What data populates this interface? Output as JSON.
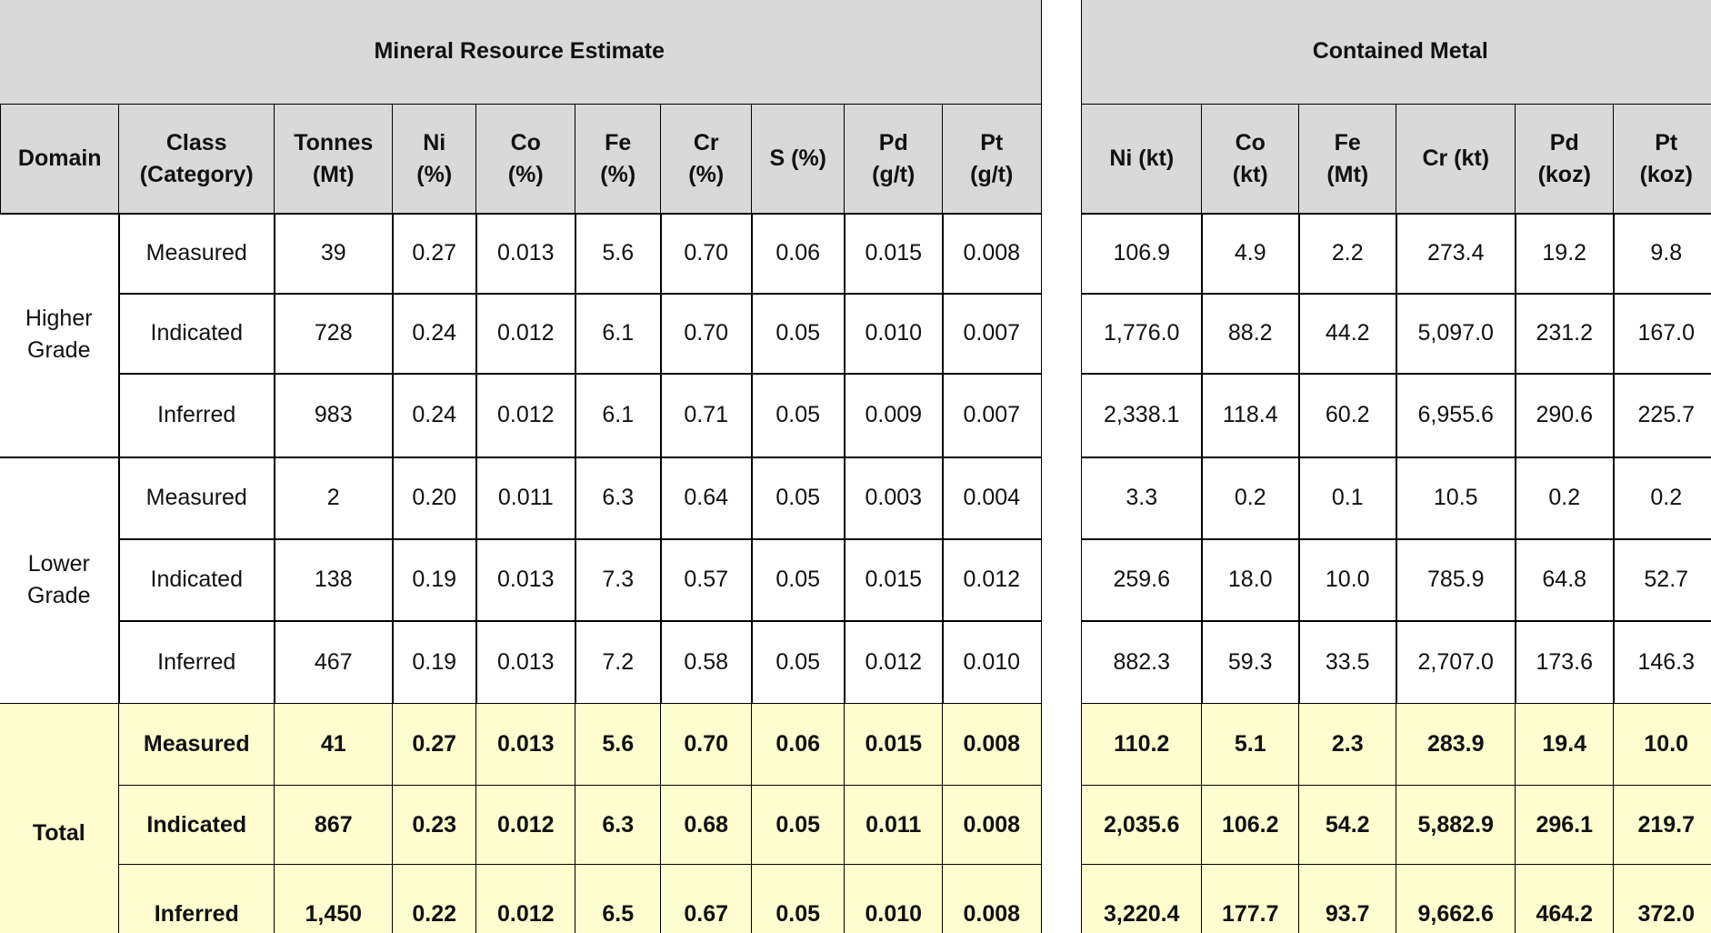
{
  "left_title": "Mineral Resource Estimate",
  "right_title": "Contained Metal",
  "left_headers": [
    "Domain",
    "Class\n(Category)",
    "Tonnes\n(Mt)",
    "Ni\n(%)",
    "Co\n(%)",
    "Fe\n(%)",
    "Cr\n(%)",
    "S (%)",
    "Pd\n(g/t)",
    "Pt\n(g/t)"
  ],
  "right_headers": [
    "Ni (kt)",
    "Co\n(kt)",
    "Fe\n(Mt)",
    "Cr (kt)",
    "Pd\n(koz)",
    "Pt\n(koz)"
  ],
  "groups": [
    {
      "domain": "Higher Grade",
      "rows": [
        {
          "class": "Measured",
          "left": [
            "39",
            "0.27",
            "0.013",
            "5.6",
            "0.70",
            "0.06",
            "0.015",
            "0.008"
          ],
          "right": [
            "106.9",
            "4.9",
            "2.2",
            "273.4",
            "19.2",
            "9.8"
          ]
        },
        {
          "class": "Indicated",
          "left": [
            "728",
            "0.24",
            "0.012",
            "6.1",
            "0.70",
            "0.05",
            "0.010",
            "0.007"
          ],
          "right": [
            "1,776.0",
            "88.2",
            "44.2",
            "5,097.0",
            "231.2",
            "167.0"
          ]
        },
        {
          "class": "Inferred",
          "left": [
            "983",
            "0.24",
            "0.012",
            "6.1",
            "0.71",
            "0.05",
            "0.009",
            "0.007"
          ],
          "right": [
            "2,338.1",
            "118.4",
            "60.2",
            "6,955.6",
            "290.6",
            "225.7"
          ]
        }
      ]
    },
    {
      "domain": "Lower Grade",
      "rows": [
        {
          "class": "Measured",
          "left": [
            "2",
            "0.20",
            "0.011",
            "6.3",
            "0.64",
            "0.05",
            "0.003",
            "0.004"
          ],
          "right": [
            "3.3",
            "0.2",
            "0.1",
            "10.5",
            "0.2",
            "0.2"
          ]
        },
        {
          "class": "Indicated",
          "left": [
            "138",
            "0.19",
            "0.013",
            "7.3",
            "0.57",
            "0.05",
            "0.015",
            "0.012"
          ],
          "right": [
            "259.6",
            "18.0",
            "10.0",
            "785.9",
            "64.8",
            "52.7"
          ]
        },
        {
          "class": "Inferred",
          "left": [
            "467",
            "0.19",
            "0.013",
            "7.2",
            "0.58",
            "0.05",
            "0.012",
            "0.010"
          ],
          "right": [
            "882.3",
            "59.3",
            "33.5",
            "2,707.0",
            "173.6",
            "146.3"
          ]
        }
      ]
    },
    {
      "domain": "Total",
      "rows": [
        {
          "class": "Measured",
          "left": [
            "41",
            "0.27",
            "0.013",
            "5.6",
            "0.70",
            "0.06",
            "0.015",
            "0.008"
          ],
          "right": [
            "110.2",
            "5.1",
            "2.3",
            "283.9",
            "19.4",
            "10.0"
          ]
        },
        {
          "class": "Indicated",
          "left": [
            "867",
            "0.23",
            "0.012",
            "6.3",
            "0.68",
            "0.05",
            "0.011",
            "0.008"
          ],
          "right": [
            "2,035.6",
            "106.2",
            "54.2",
            "5,882.9",
            "296.1",
            "219.7"
          ]
        },
        {
          "class": "Inferred",
          "left": [
            "1,450",
            "0.22",
            "0.012",
            "6.5",
            "0.67",
            "0.05",
            "0.010",
            "0.008"
          ],
          "right": [
            "3,220.4",
            "177.7",
            "93.7",
            "9,662.6",
            "464.2",
            "372.0"
          ]
        }
      ]
    }
  ]
}
